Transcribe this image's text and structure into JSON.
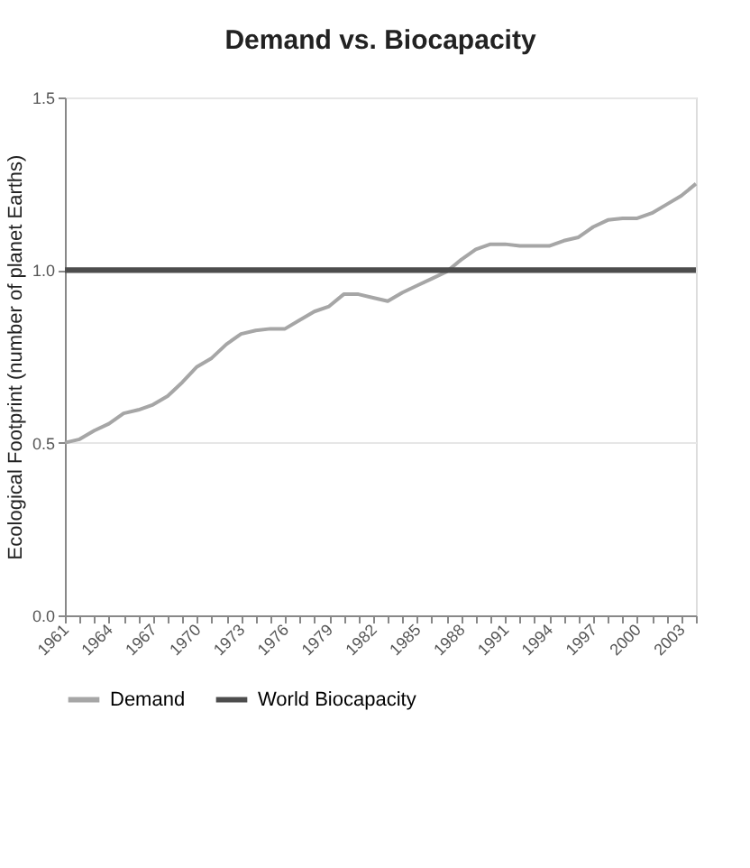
{
  "chart_data": {
    "type": "line",
    "title": "Demand vs. Biocapacity",
    "ylabel": "Ecological Footprint (number of planet Earths)",
    "x": [
      1961,
      1962,
      1963,
      1964,
      1965,
      1966,
      1967,
      1968,
      1969,
      1970,
      1971,
      1972,
      1973,
      1974,
      1975,
      1976,
      1977,
      1978,
      1979,
      1980,
      1981,
      1982,
      1983,
      1984,
      1985,
      1986,
      1987,
      1988,
      1989,
      1990,
      1991,
      1992,
      1993,
      1994,
      1995,
      1996,
      1997,
      1998,
      1999,
      2000,
      2001,
      2002,
      2003,
      2004
    ],
    "series": [
      {
        "name": "Demand",
        "color": "#a6a6a6",
        "values": [
          0.5,
          0.51,
          0.535,
          0.555,
          0.585,
          0.595,
          0.61,
          0.635,
          0.675,
          0.72,
          0.745,
          0.785,
          0.815,
          0.825,
          0.83,
          0.83,
          0.855,
          0.88,
          0.895,
          0.93,
          0.93,
          0.92,
          0.91,
          0.935,
          0.955,
          0.975,
          0.995,
          1.03,
          1.06,
          1.075,
          1.075,
          1.07,
          1.07,
          1.07,
          1.085,
          1.095,
          1.125,
          1.145,
          1.15,
          1.15,
          1.165,
          1.19,
          1.215,
          1.25
        ]
      },
      {
        "name": "World Biocapacity",
        "color": "#4d4d4d",
        "x": [
          1961,
          2004
        ],
        "values": [
          1.0,
          1.0
        ]
      }
    ],
    "xlim": [
      1961,
      2004
    ],
    "xticks": [
      1961,
      {
        "value": 1962,
        "label": null
      },
      {
        "value": 1963,
        "label": null
      },
      1964,
      {
        "value": 1965,
        "label": null
      },
      {
        "value": 1966,
        "label": null
      },
      1967,
      {
        "value": 1968,
        "label": null
      },
      {
        "value": 1969,
        "label": null
      },
      1970,
      {
        "value": 1971,
        "label": null
      },
      {
        "value": 1972,
        "label": null
      },
      1973,
      {
        "value": 1974,
        "label": null
      },
      {
        "value": 1975,
        "label": null
      },
      1976,
      {
        "value": 1977,
        "label": null
      },
      {
        "value": 1978,
        "label": null
      },
      1979,
      {
        "value": 1980,
        "label": null
      },
      {
        "value": 1981,
        "label": null
      },
      1982,
      {
        "value": 1983,
        "label": null
      },
      {
        "value": 1984,
        "label": null
      },
      1985,
      {
        "value": 1986,
        "label": null
      },
      {
        "value": 1987,
        "label": null
      },
      1988,
      {
        "value": 1989,
        "label": null
      },
      {
        "value": 1990,
        "label": null
      },
      1991,
      {
        "value": 1992,
        "label": null
      },
      {
        "value": 1993,
        "label": null
      },
      1994,
      {
        "value": 1995,
        "label": null
      },
      {
        "value": 1996,
        "label": null
      },
      1997,
      {
        "value": 1998,
        "label": null
      },
      {
        "value": 1999,
        "label": null
      },
      2000,
      {
        "value": 2001,
        "label": null
      },
      {
        "value": 2002,
        "label": null
      },
      2003,
      {
        "value": 2004,
        "label": null
      }
    ],
    "ylim": [
      0,
      1.5
    ],
    "yticks": [
      {
        "value": 0,
        "label": "0.0"
      },
      0.5,
      {
        "value": 1,
        "label": "1.0"
      },
      1.5
    ],
    "grid": "y",
    "legend": "bottom",
    "marker": "none",
    "line_style": "solid"
  }
}
